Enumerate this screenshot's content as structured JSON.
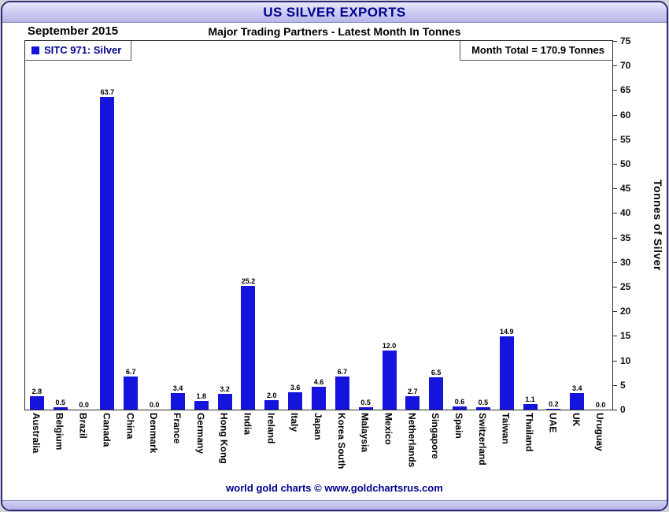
{
  "window": {
    "title": "US SILVER EXPORTS"
  },
  "header": {
    "date_label": "September 2015",
    "subtitle": "Major Trading Partners - Latest Month In Tonnes"
  },
  "legend": {
    "label": "SITC 971: Silver"
  },
  "annotations": {
    "month_total": "Month Total = 170.9 Tonnes"
  },
  "footer": {
    "credit": "world gold charts © www.goldchartsrus.com"
  },
  "colors": {
    "bar": "#1414dd",
    "title_text": "#00008b",
    "accent_top": "#e9e9fb",
    "accent_bottom": "#b7b7e8"
  },
  "chart_data": {
    "type": "bar",
    "title": "US SILVER EXPORTS",
    "subtitle": "Major Trading Partners - Latest Month In Tonnes",
    "period": "September 2015",
    "series_label": "SITC 971: Silver",
    "month_total_tonnes": 170.9,
    "categories": [
      "Australia",
      "Belgium",
      "Brazil",
      "Canada",
      "China",
      "Denmark",
      "France",
      "Germany",
      "Hong Kong",
      "India",
      "Ireland",
      "Italy",
      "Japan",
      "Korea South",
      "Malaysia",
      "Mexico",
      "Netherlands",
      "Singapore",
      "Spain",
      "Switzerland",
      "Taiwan",
      "Thailand",
      "UAE",
      "UK",
      "Uruguay"
    ],
    "values": [
      2.8,
      0.5,
      0.0,
      63.7,
      6.7,
      0.0,
      3.4,
      1.8,
      3.2,
      25.2,
      2.0,
      3.6,
      4.6,
      6.7,
      0.5,
      12.0,
      2.7,
      6.5,
      0.6,
      0.5,
      14.9,
      1.1,
      0.2,
      3.4,
      0.0
    ],
    "xlabel": "",
    "ylabel": "Tonnes of Silver",
    "ylim": [
      0,
      75
    ],
    "ytick_step": 5,
    "grid": false,
    "legend_position": "top-left",
    "value_labels": true,
    "yaxis_side": "right"
  }
}
